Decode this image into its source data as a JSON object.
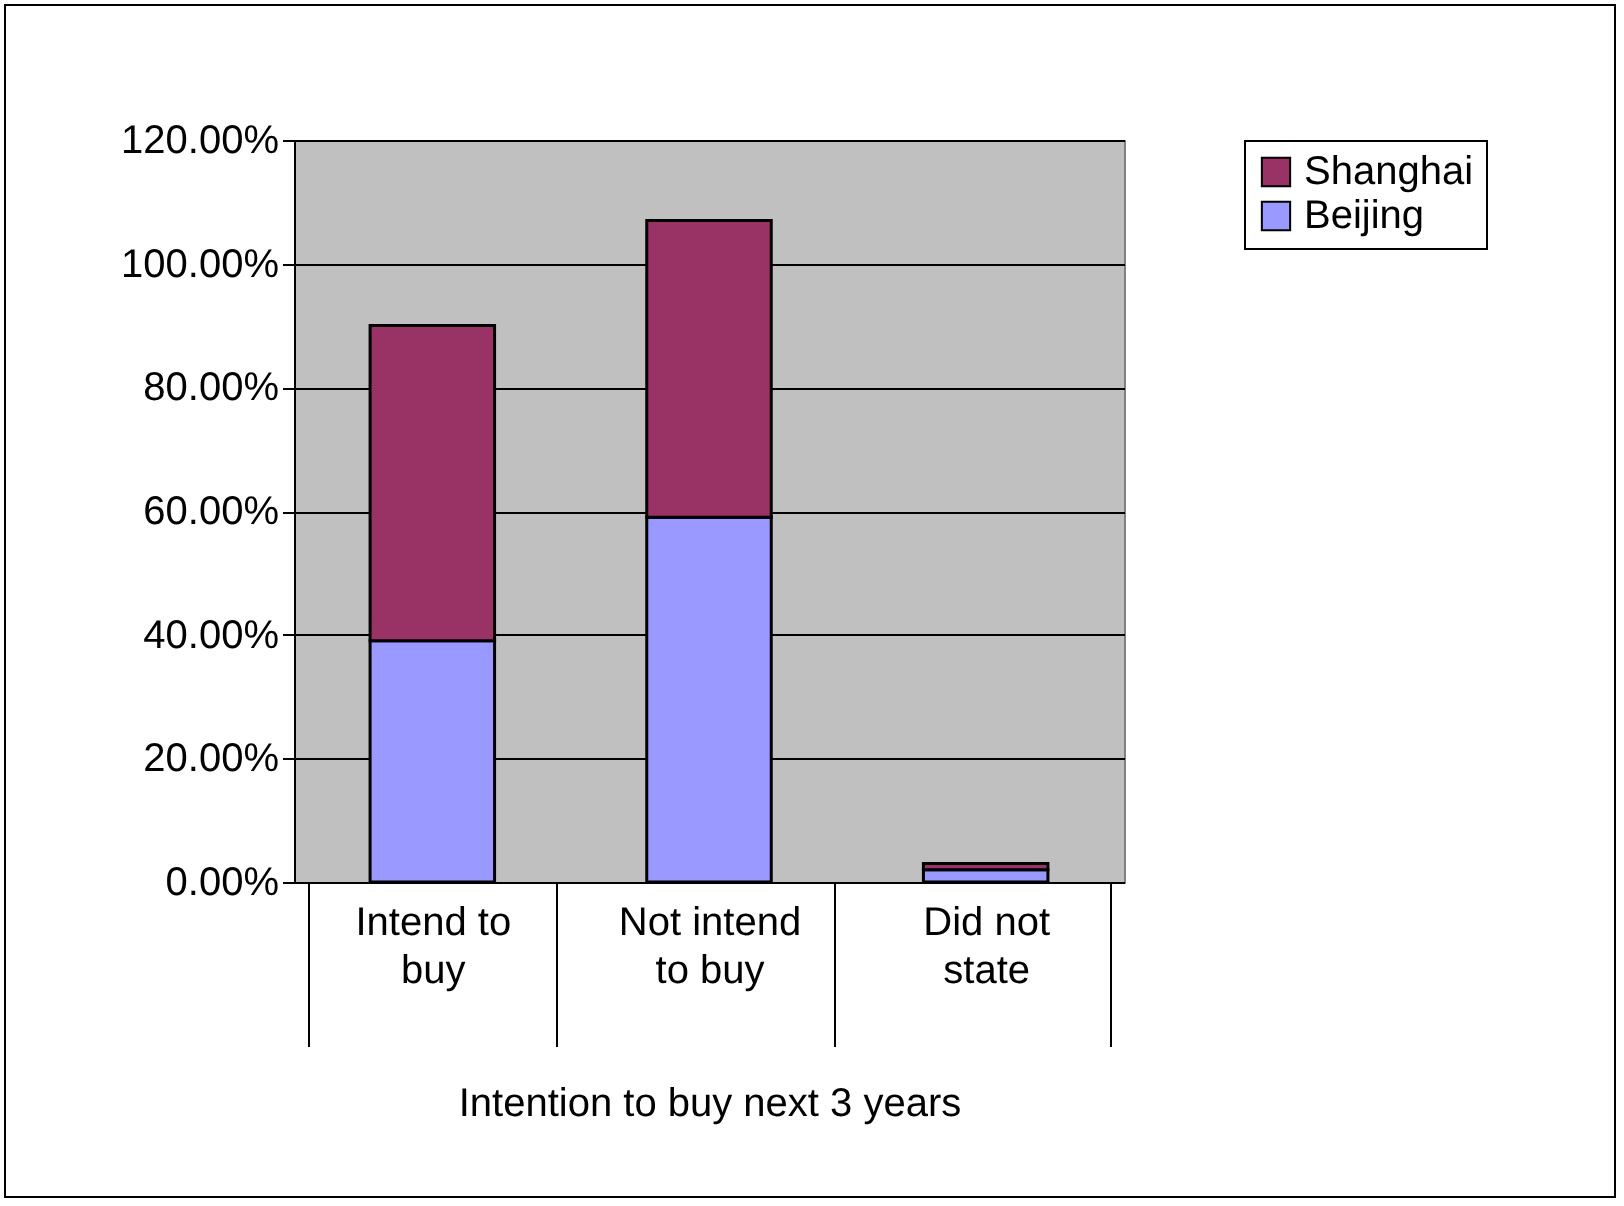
{
  "chart_data": {
    "type": "bar",
    "stacked": true,
    "xlabel": "Intention to buy next 3 years",
    "categories": [
      "Intend to buy",
      "Not intend to buy",
      "Did not state"
    ],
    "series": [
      {
        "name": "Beijing",
        "color": "#9999ff",
        "values": [
          39,
          59,
          2
        ]
      },
      {
        "name": "Shanghai",
        "color": "#993366",
        "values": [
          51,
          48,
          1
        ]
      }
    ],
    "ylim": [
      0,
      120
    ],
    "yticks": [
      {
        "value": 0,
        "label": "0.00%"
      },
      {
        "value": 20,
        "label": "20.00%"
      },
      {
        "value": 40,
        "label": "40.00%"
      },
      {
        "value": 60,
        "label": "60.00%"
      },
      {
        "value": 80,
        "label": "80.00%"
      },
      {
        "value": 100,
        "label": "100.00%"
      },
      {
        "value": 120,
        "label": "120.00%"
      }
    ],
    "grid": "y",
    "legend": "right"
  }
}
